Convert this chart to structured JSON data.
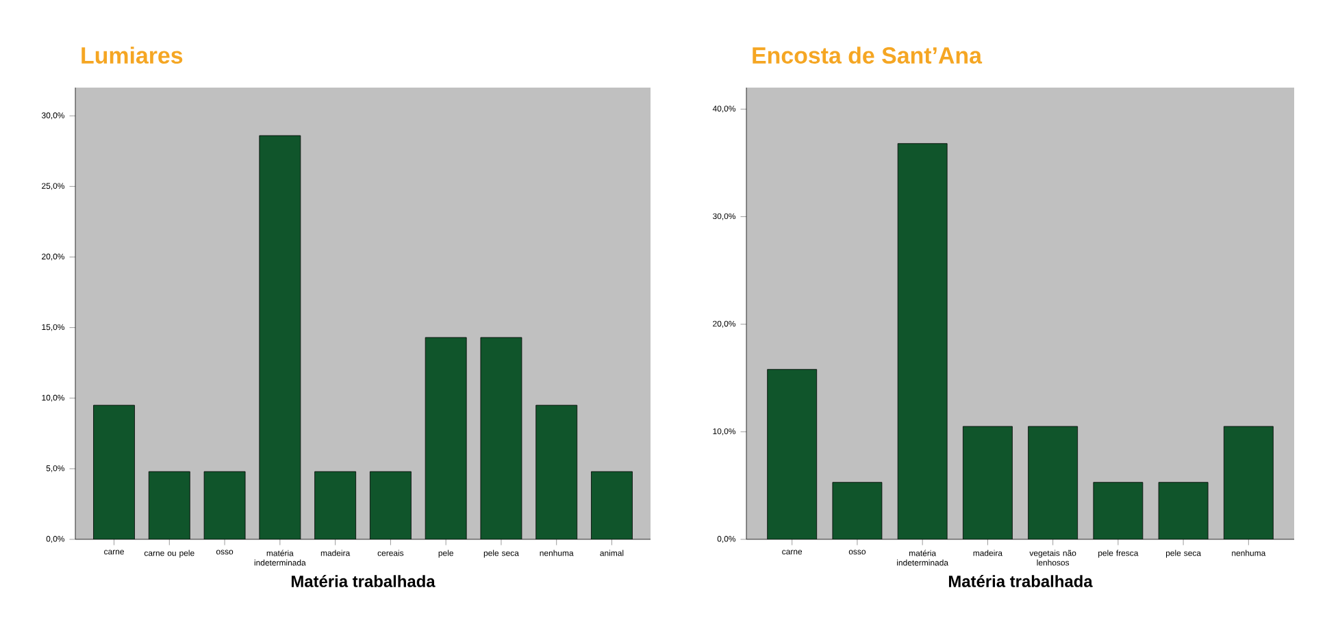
{
  "chart_data": [
    {
      "type": "bar",
      "title": "Lumiares",
      "xlabel": "Matéria trabalhada",
      "categories": [
        "carne",
        "carne ou pele",
        "osso",
        "matéria indeterminada",
        "madeira",
        "cereais",
        "pele",
        "pele seca",
        "nenhuma",
        "animal"
      ],
      "values": [
        9.5,
        4.8,
        4.8,
        28.6,
        4.8,
        4.8,
        14.3,
        14.3,
        9.5,
        4.8
      ],
      "color": "#10552b",
      "ylim": [
        0,
        32
      ],
      "yticks": [
        {
          "value": 0,
          "label": "0,0%"
        },
        {
          "value": 5,
          "label": "5,0%"
        },
        {
          "value": 10,
          "label": "10,0%"
        },
        {
          "value": 15,
          "label": "15,0%"
        },
        {
          "value": 20,
          "label": "20,0%"
        },
        {
          "value": 25,
          "label": "25,0%"
        },
        {
          "value": 30,
          "label": "30,0%"
        }
      ]
    },
    {
      "type": "bar",
      "title": "Encosta de Sant’Ana",
      "xlabel": "Matéria trabalhada",
      "categories": [
        "carne",
        "osso",
        "matéria indeterminada",
        "madeira",
        "vegetais não lenhosos",
        "pele fresca",
        "pele seca",
        "nenhuma"
      ],
      "values": [
        15.8,
        5.3,
        36.8,
        10.5,
        10.5,
        5.3,
        5.3,
        10.5
      ],
      "color": "#10552b",
      "ylim": [
        0,
        42
      ],
      "yticks": [
        {
          "value": 0,
          "label": "0,0%"
        },
        {
          "value": 10,
          "label": "10,0%"
        },
        {
          "value": 20,
          "label": "20,0%"
        },
        {
          "value": 30,
          "label": "30,0%"
        },
        {
          "value": 40,
          "label": "40,0%"
        }
      ]
    }
  ]
}
